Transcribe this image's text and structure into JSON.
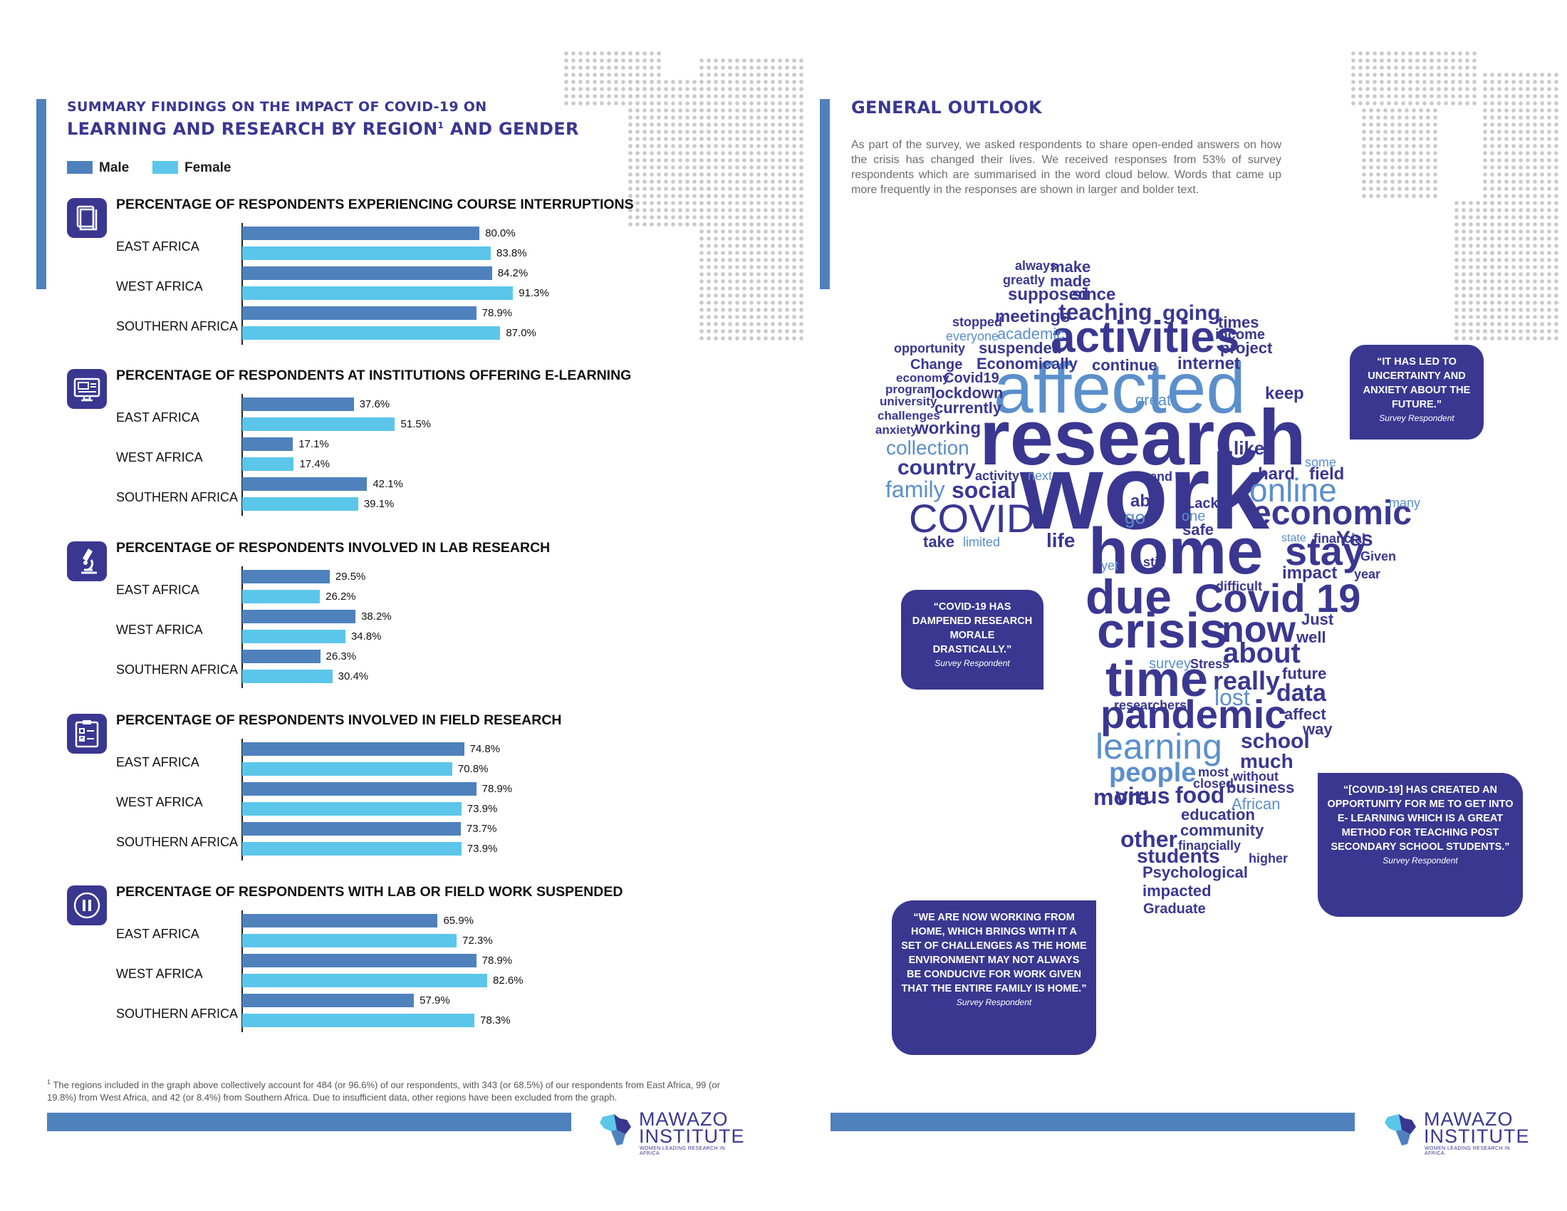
{
  "left_page": {
    "heading_line1": "SUMMARY FINDINGS ON THE IMPACT OF COVID-19 ON",
    "heading_line2_pre": "LEARNING AND RESEARCH BY REGION",
    "heading_sup": "1",
    "heading_line2_post": " AND GENDER",
    "legend": [
      {
        "label": "Male",
        "color": "#4f81bd"
      },
      {
        "label": "Female",
        "color": "#5bc6ea"
      }
    ],
    "footnote_sup": "1",
    "footnote": " The regions included in the graph above collectively account for 484 (or 96.6%) of our respondents, with 343 (or 68.5%) of our respondents from East Africa, 99 (or 19.8%) from West Africa, and 42 (or 8.4%) from Southern Africa. Due to insufficient data, other regions have been excluded from the graph."
  },
  "chart_data": [
    {
      "type": "bar",
      "orientation": "horizontal",
      "icon": "books-icon",
      "title": "PERCENTAGE OF RESPONDENTS EXPERIENCING COURSE INTERRUPTIONS",
      "categories": [
        "EAST AFRICA",
        "WEST AFRICA",
        "SOUTHERN AFRICA"
      ],
      "series": [
        {
          "name": "Male",
          "values": [
            80.0,
            84.2,
            78.9
          ]
        },
        {
          "name": "Female",
          "values": [
            83.8,
            91.3,
            87.0
          ]
        }
      ]
    },
    {
      "type": "bar",
      "orientation": "horizontal",
      "icon": "computer-icon",
      "title": "PERCENTAGE OF RESPONDENTS AT INSTITUTIONS OFFERING E-LEARNING",
      "categories": [
        "EAST AFRICA",
        "WEST AFRICA",
        "SOUTHERN AFRICA"
      ],
      "series": [
        {
          "name": "Male",
          "values": [
            37.6,
            17.1,
            42.1
          ]
        },
        {
          "name": "Female",
          "values": [
            51.5,
            17.4,
            39.1
          ]
        }
      ]
    },
    {
      "type": "bar",
      "orientation": "horizontal",
      "icon": "microscope-icon",
      "title": "PERCENTAGE OF RESPONDENTS INVOLVED IN LAB RESEARCH",
      "categories": [
        "EAST AFRICA",
        "WEST AFRICA",
        "SOUTHERN AFRICA"
      ],
      "series": [
        {
          "name": "Male",
          "values": [
            29.5,
            38.2,
            26.3
          ]
        },
        {
          "name": "Female",
          "values": [
            26.2,
            34.8,
            30.4
          ]
        }
      ]
    },
    {
      "type": "bar",
      "orientation": "horizontal",
      "icon": "clipboard-icon",
      "title": "PERCENTAGE OF RESPONDENTS INVOLVED IN FIELD RESEARCH",
      "categories": [
        "EAST AFRICA",
        "WEST AFRICA",
        "SOUTHERN AFRICA"
      ],
      "series": [
        {
          "name": "Male",
          "values": [
            74.8,
            78.9,
            73.7
          ]
        },
        {
          "name": "Female",
          "values": [
            70.8,
            73.9,
            73.9
          ]
        }
      ]
    },
    {
      "type": "bar",
      "orientation": "horizontal",
      "icon": "pause-icon",
      "title": "PERCENTAGE OF RESPONDENTS WITH LAB OR FIELD WORK SUSPENDED",
      "categories": [
        "EAST AFRICA",
        "WEST AFRICA",
        "SOUTHERN AFRICA"
      ],
      "series": [
        {
          "name": "Male",
          "values": [
            65.9,
            78.9,
            57.9
          ]
        },
        {
          "name": "Female",
          "values": [
            72.3,
            82.6,
            78.3
          ]
        }
      ]
    }
  ],
  "right_page": {
    "heading": "GENERAL OUTLOOK",
    "intro": "As part of the survey, we asked respondents to share open-ended answers on how the crisis has changed their lives. We received responses from 53% of survey respondents which are summarised in the word cloud below. Words that came up more frequently in the responses are shown in larger and bolder text.",
    "word_colors": {
      "dark": "#3a3791",
      "light": "#5b8fcb"
    },
    "word_cloud": [
      {
        "text": "work"
      },
      {
        "text": "research"
      },
      {
        "text": "affected"
      },
      {
        "text": "home"
      },
      {
        "text": "activities"
      },
      {
        "text": "crisis"
      },
      {
        "text": "due"
      },
      {
        "text": "time"
      },
      {
        "text": "pandemic"
      },
      {
        "text": "Covid 19"
      },
      {
        "text": "now"
      },
      {
        "text": "stay"
      },
      {
        "text": "economic"
      },
      {
        "text": "COVID"
      },
      {
        "text": "online"
      },
      {
        "text": "learning"
      },
      {
        "text": "about"
      },
      {
        "text": "people"
      },
      {
        "text": "teaching"
      },
      {
        "text": "going"
      },
      {
        "text": "really"
      },
      {
        "text": "data"
      },
      {
        "text": "more"
      },
      {
        "text": "virus"
      },
      {
        "text": "food"
      },
      {
        "text": "other"
      },
      {
        "text": "lost"
      },
      {
        "text": "family"
      },
      {
        "text": "social"
      },
      {
        "text": "country"
      },
      {
        "text": "collection"
      },
      {
        "text": "working"
      },
      {
        "text": "life"
      },
      {
        "text": "school"
      },
      {
        "text": "much"
      },
      {
        "text": "students"
      },
      {
        "text": "education"
      },
      {
        "text": "continue"
      },
      {
        "text": "internet"
      },
      {
        "text": "like"
      },
      {
        "text": "hard"
      },
      {
        "text": "field"
      },
      {
        "text": "Yes"
      },
      {
        "text": "impact"
      },
      {
        "text": "Just"
      },
      {
        "text": "well"
      },
      {
        "text": "future"
      },
      {
        "text": "affect"
      },
      {
        "text": "way"
      },
      {
        "text": "business"
      },
      {
        "text": "African"
      },
      {
        "text": "community"
      },
      {
        "text": "Psychological"
      },
      {
        "text": "impacted"
      },
      {
        "text": "Graduate"
      },
      {
        "text": "financially"
      },
      {
        "text": "higher"
      },
      {
        "text": "without"
      },
      {
        "text": "most"
      },
      {
        "text": "closed"
      },
      {
        "text": "researchers"
      },
      {
        "text": "survey"
      },
      {
        "text": "Stress"
      },
      {
        "text": "difficult"
      },
      {
        "text": "able"
      },
      {
        "text": "go"
      },
      {
        "text": "Lack"
      },
      {
        "text": "one"
      },
      {
        "text": "safe"
      },
      {
        "text": "take"
      },
      {
        "text": "limited"
      },
      {
        "text": "yet"
      },
      {
        "text": "still"
      },
      {
        "text": "state"
      },
      {
        "text": "financial"
      },
      {
        "text": "Given"
      },
      {
        "text": "year"
      },
      {
        "text": "many"
      },
      {
        "text": "some"
      },
      {
        "text": "end"
      },
      {
        "text": "activity"
      },
      {
        "text": "next"
      },
      {
        "text": "keep"
      },
      {
        "text": "great"
      },
      {
        "text": "anxiety"
      },
      {
        "text": "challenges"
      },
      {
        "text": "university"
      },
      {
        "text": "program"
      },
      {
        "text": "economy"
      },
      {
        "text": "lockdown"
      },
      {
        "text": "currently"
      },
      {
        "text": "Covid19"
      },
      {
        "text": "Economically"
      },
      {
        "text": "Change"
      },
      {
        "text": "opportunity"
      },
      {
        "text": "suspended"
      },
      {
        "text": "everyone"
      },
      {
        "text": "academic"
      },
      {
        "text": "stopped"
      },
      {
        "text": "meetings"
      },
      {
        "text": "supposed"
      },
      {
        "text": "since"
      },
      {
        "text": "greatly"
      },
      {
        "text": "made"
      },
      {
        "text": "always"
      },
      {
        "text": "make"
      },
      {
        "text": "times"
      },
      {
        "text": "income"
      },
      {
        "text": "project"
      }
    ],
    "quotes": [
      {
        "text": "“IT HAS LED TO UNCERTAINTY AND ANXIETY ABOUT THE FUTURE.”",
        "attribution": "Survey Respondent"
      },
      {
        "text": "“COVID-19 HAS DAMPENED RESEARCH MORALE DRASTICALLY.”",
        "attribution": "Survey Respondent"
      },
      {
        "text": "“[COVID-19] HAS CREATED AN OPPORTUNITY FOR ME TO GET INTO E- LEARNING WHICH IS A GREAT METHOD FOR TEACHING POST SECONDARY SCHOOL STUDENTS.”",
        "attribution": "Survey Respondent"
      },
      {
        "text": "“WE ARE NOW WORKING FROM HOME, WHICH BRINGS WITH IT A SET OF CHALLENGES AS THE HOME ENVIRONMENT MAY NOT ALWAYS BE CONDUCIVE FOR WORK GIVEN THAT THE ENTIRE FAMILY IS HOME.”",
        "attribution": "Survey Respondent"
      }
    ]
  },
  "logo": {
    "line1": "MAWAZO",
    "line2": "INSTITUTE",
    "tagline": "WOMEN LEADING RESEARCH IN AFRICA"
  }
}
